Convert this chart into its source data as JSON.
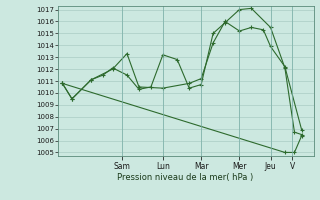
{
  "xlabel": "Pression niveau de la mer( hPa )",
  "background_color": "#cce8e0",
  "grid_color": "#aaccc4",
  "line_color": "#2d6a2d",
  "ylim": [
    1005,
    1017
  ],
  "yticks": [
    1005,
    1006,
    1007,
    1008,
    1009,
    1010,
    1011,
    1012,
    1013,
    1014,
    1015,
    1016,
    1017
  ],
  "day_labels": [
    "Sam",
    "Lun",
    "Mar",
    "Mer",
    "Jeu",
    "V"
  ],
  "day_x": [
    0.25,
    0.42,
    0.58,
    0.74,
    0.87,
    0.96
  ],
  "lines": [
    {
      "x": [
        0.0,
        0.04,
        0.12,
        0.17,
        0.21,
        0.27,
        0.32,
        0.37,
        0.42,
        0.48,
        0.53,
        0.58,
        0.63,
        0.68,
        0.74,
        0.79,
        0.87,
        0.93,
        0.97,
        1.0
      ],
      "y": [
        1010.8,
        1009.5,
        1011.1,
        1011.5,
        1012.1,
        1011.5,
        1010.3,
        1010.5,
        1013.2,
        1012.8,
        1010.4,
        1010.7,
        1015.0,
        1015.9,
        1017.0,
        1017.1,
        1015.5,
        1012.1,
        1006.7,
        1006.5
      ]
    },
    {
      "x": [
        0.0,
        0.04,
        0.12,
        0.21,
        0.27,
        0.32,
        0.42,
        0.53,
        0.58,
        0.63,
        0.68,
        0.74,
        0.79,
        0.84,
        0.87,
        0.93,
        1.0
      ],
      "y": [
        1010.8,
        1009.5,
        1011.1,
        1012.0,
        1013.3,
        1010.5,
        1010.4,
        1010.8,
        1011.2,
        1014.2,
        1016.0,
        1015.2,
        1015.5,
        1015.3,
        1013.9,
        1012.2,
        1006.9
      ]
    },
    {
      "x": [
        0.0,
        0.93,
        0.97,
        1.0
      ],
      "y": [
        1010.8,
        1005.0,
        1005.0,
        1006.4
      ]
    }
  ]
}
